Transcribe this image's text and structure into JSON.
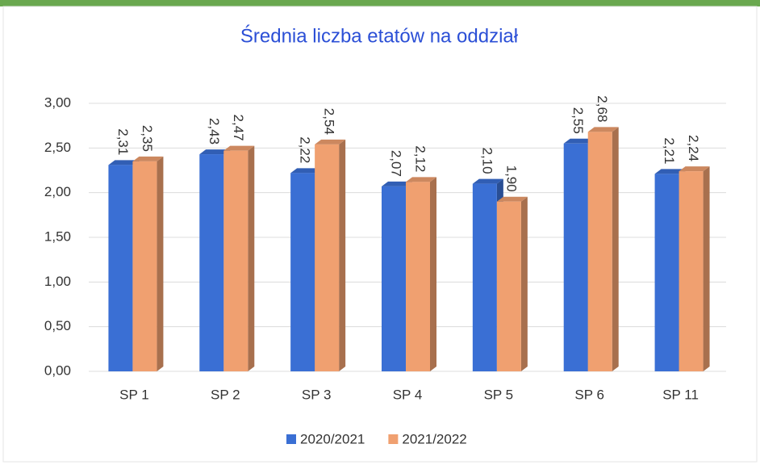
{
  "chart_data": {
    "type": "bar3d",
    "title": "Średnia liczba etatów na oddział",
    "categories": [
      "SP 1",
      "SP 2",
      "SP 3",
      "SP 4",
      "SP 5",
      "SP 6",
      "SP 11"
    ],
    "series": [
      {
        "name": "2020/2021",
        "color": "#3a6fd4",
        "values": [
          2.31,
          2.43,
          2.22,
          2.07,
          2.1,
          2.55,
          2.21
        ],
        "value_labels": [
          "2,31",
          "2,43",
          "2,22",
          "2,07",
          "2,10",
          "2,55",
          "2,21"
        ]
      },
      {
        "name": "2021/2022",
        "color": "#f0a070",
        "values": [
          2.35,
          2.47,
          2.54,
          2.12,
          1.9,
          2.68,
          2.24
        ],
        "value_labels": [
          "2,35",
          "2,47",
          "2,54",
          "2,12",
          "1,90",
          "2,68",
          "2,24"
        ]
      }
    ],
    "ylim": [
      0,
      3
    ],
    "yticks": [
      {
        "value": 0,
        "label": "0,00"
      },
      {
        "value": 0.5,
        "label": "0,50"
      },
      {
        "value": 1,
        "label": "1,00"
      },
      {
        "value": 1.5,
        "label": "1,50"
      },
      {
        "value": 2,
        "label": "2,00"
      },
      {
        "value": 2.5,
        "label": "2,50"
      },
      {
        "value": 3,
        "label": "3,00"
      }
    ],
    "grid": true,
    "legend": "bottom"
  }
}
